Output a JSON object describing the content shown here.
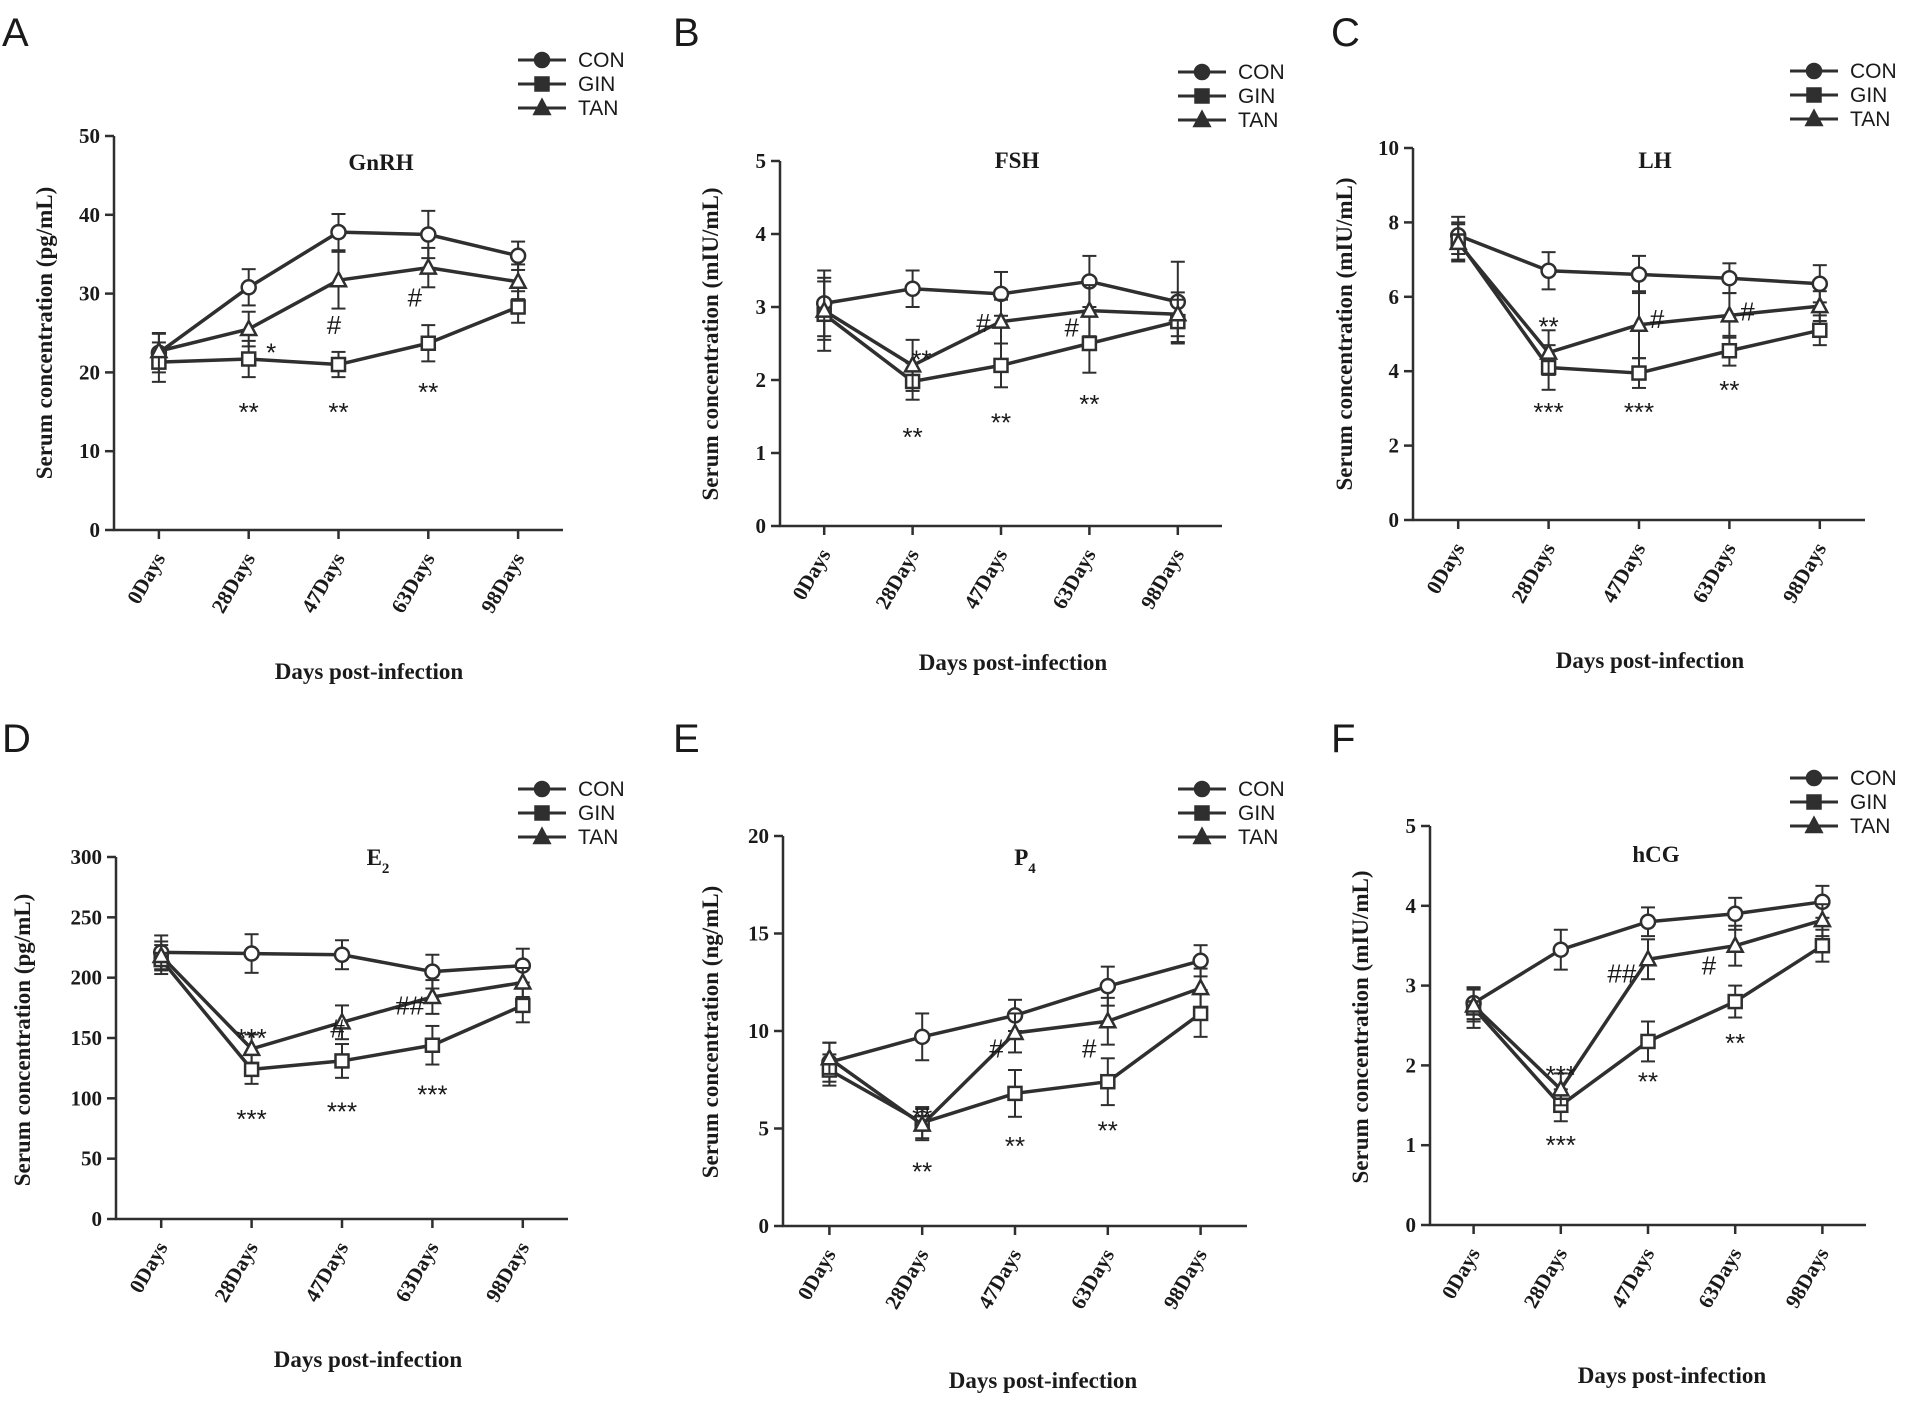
{
  "figure": {
    "colors": {
      "ink": "#2f2f2f",
      "background": "#ffffff"
    }
  },
  "chart_data": [
    {
      "panel": "A",
      "type": "line",
      "title": "GnRH",
      "title_sub": "",
      "xlabel": "Days post-infection",
      "ylabel": "Serum concentration  (pg/mL)",
      "categories": [
        "0Days",
        "28Days",
        "47Days",
        "63Days",
        "98Days"
      ],
      "ylim": [
        0,
        50
      ],
      "yticks": [
        0,
        10,
        20,
        30,
        40,
        50
      ],
      "ytick_labels": [
        "0",
        "10",
        "20",
        "30",
        "40",
        "50"
      ],
      "legend": [
        "CON",
        "GIN",
        "TAN"
      ],
      "series": [
        {
          "name": "CON",
          "marker": "circle",
          "values": [
            22.5,
            30.8,
            37.8,
            37.5,
            34.8
          ],
          "errors": [
            2.5,
            2.3,
            2.3,
            3.0,
            1.8
          ]
        },
        {
          "name": "GIN",
          "marker": "square",
          "values": [
            21.3,
            21.7,
            21.0,
            23.7,
            28.3
          ],
          "errors": [
            2.5,
            2.3,
            1.6,
            2.3,
            2.0
          ]
        },
        {
          "name": "TAN",
          "marker": "triangle",
          "values": [
            22.7,
            25.5,
            31.7,
            33.3,
            31.5
          ],
          "errors": [
            2.2,
            2.2,
            3.6,
            2.5,
            2.2
          ]
        }
      ],
      "annotations": [
        {
          "text": "*",
          "category": "28Days",
          "y": 22.5,
          "dx": 0.25
        },
        {
          "text": "#",
          "category": "47Days",
          "y": 26.0,
          "dx": -0.05
        },
        {
          "text": "#",
          "category": "63Days",
          "y": 29.5,
          "dx": -0.15
        },
        {
          "text": "**",
          "category": "28Days",
          "y": 15.0,
          "dx": 0
        },
        {
          "text": "**",
          "category": "47Days",
          "y": 15.0,
          "dx": 0
        },
        {
          "text": "**",
          "category": "63Days",
          "y": 17.5,
          "dx": 0
        }
      ]
    },
    {
      "panel": "B",
      "type": "line",
      "title": "FSH",
      "title_sub": "",
      "xlabel": "Days post-infection",
      "ylabel": "Serum concentration  (mIU/mL)",
      "categories": [
        "0Days",
        "28Days",
        "47Days",
        "63Days",
        "98Days"
      ],
      "ylim": [
        0,
        5
      ],
      "yticks": [
        0,
        1,
        2,
        3,
        4,
        5
      ],
      "ytick_labels": [
        "0",
        "1",
        "2",
        "3",
        "4",
        "5"
      ],
      "legend": [
        "CON",
        "GIN",
        "TAN"
      ],
      "series": [
        {
          "name": "CON",
          "marker": "circle",
          "values": [
            3.05,
            3.25,
            3.18,
            3.35,
            3.07
          ],
          "errors": [
            0.45,
            0.25,
            0.3,
            0.35,
            0.55
          ]
        },
        {
          "name": "GIN",
          "marker": "square",
          "values": [
            2.9,
            1.98,
            2.2,
            2.5,
            2.8
          ],
          "errors": [
            0.5,
            0.25,
            0.3,
            0.4,
            0.3
          ]
        },
        {
          "name": "TAN",
          "marker": "triangle",
          "values": [
            2.95,
            2.2,
            2.8,
            2.95,
            2.9
          ],
          "errors": [
            0.4,
            0.35,
            0.3,
            0.35,
            0.3
          ]
        }
      ],
      "annotations": [
        {
          "text": "**",
          "category": "28Days",
          "y": 2.28,
          "dx": 0.1
        },
        {
          "text": "#",
          "category": "47Days",
          "y": 2.78,
          "dx": -0.2
        },
        {
          "text": "#",
          "category": "63Days",
          "y": 2.72,
          "dx": -0.2
        },
        {
          "text": "**",
          "category": "28Days",
          "y": 1.22,
          "dx": 0
        },
        {
          "text": "**",
          "category": "47Days",
          "y": 1.42,
          "dx": 0
        },
        {
          "text": "**",
          "category": "63Days",
          "y": 1.67,
          "dx": 0
        }
      ]
    },
    {
      "panel": "C",
      "type": "line",
      "title": "LH",
      "title_sub": "",
      "xlabel": "Days post-infection",
      "ylabel": "Serum concentration  (mIU/mL)",
      "categories": [
        "0Days",
        "28Days",
        "47Days",
        "63Days",
        "98Days"
      ],
      "ylim": [
        0,
        10
      ],
      "yticks": [
        0,
        2,
        4,
        6,
        8,
        10
      ],
      "ytick_labels": [
        "0",
        "2",
        "4",
        "6",
        "8",
        "10"
      ],
      "legend": [
        "CON",
        "GIN",
        "TAN"
      ],
      "series": [
        {
          "name": "CON",
          "marker": "circle",
          "values": [
            7.65,
            6.7,
            6.6,
            6.5,
            6.35
          ],
          "errors": [
            0.5,
            0.5,
            0.5,
            0.4,
            0.5
          ]
        },
        {
          "name": "GIN",
          "marker": "square",
          "values": [
            7.5,
            4.1,
            3.95,
            4.55,
            5.1
          ],
          "errors": [
            0.5,
            0.6,
            0.4,
            0.4,
            0.4
          ]
        },
        {
          "name": "TAN",
          "marker": "triangle",
          "values": [
            7.45,
            4.5,
            5.25,
            5.5,
            5.75
          ],
          "errors": [
            0.5,
            0.6,
            0.9,
            0.6,
            0.4
          ]
        }
      ],
      "annotations": [
        {
          "text": "**",
          "category": "28Days",
          "y": 5.2,
          "dx": 0
        },
        {
          "text": "#",
          "category": "47Days",
          "y": 5.4,
          "dx": 0.2
        },
        {
          "text": "#",
          "category": "63Days",
          "y": 5.6,
          "dx": 0.2
        },
        {
          "text": "***",
          "category": "28Days",
          "y": 2.9,
          "dx": 0
        },
        {
          "text": "***",
          "category": "47Days",
          "y": 2.9,
          "dx": 0
        },
        {
          "text": "**",
          "category": "63Days",
          "y": 3.5,
          "dx": 0
        }
      ]
    },
    {
      "panel": "D",
      "type": "line",
      "title": "E",
      "title_sub": "2",
      "xlabel": "Days post-infection",
      "ylabel": "Serum concentration  (pg/mL)",
      "categories": [
        "0Days",
        "28Days",
        "47Days",
        "63Days",
        "98Days"
      ],
      "ylim": [
        0,
        300
      ],
      "yticks": [
        0,
        50,
        100,
        150,
        200,
        250,
        300
      ],
      "ytick_labels": [
        "0",
        "50",
        "100",
        "150",
        "200",
        "250",
        "300"
      ],
      "legend": [
        "CON",
        "GIN",
        "TAN"
      ],
      "series": [
        {
          "name": "CON",
          "marker": "circle",
          "values": [
            221,
            220,
            219,
            205,
            210
          ],
          "errors": [
            14,
            16,
            12,
            14,
            14
          ]
        },
        {
          "name": "GIN",
          "marker": "square",
          "values": [
            215,
            124,
            131,
            144,
            177
          ],
          "errors": [
            12,
            12,
            14,
            16,
            14
          ]
        },
        {
          "name": "TAN",
          "marker": "triangle",
          "values": [
            218,
            141,
            163,
            184,
            196
          ],
          "errors": [
            12,
            12,
            14,
            14,
            12
          ]
        }
      ],
      "annotations": [
        {
          "text": "***",
          "category": "28Days",
          "y": 150,
          "dx": 0
        },
        {
          "text": "#",
          "category": "47Days",
          "y": 158,
          "dx": -0.05
        },
        {
          "text": "##",
          "category": "63Days",
          "y": 177,
          "dx": -0.25
        },
        {
          "text": "***",
          "category": "28Days",
          "y": 83,
          "dx": 0
        },
        {
          "text": "***",
          "category": "47Days",
          "y": 89,
          "dx": 0
        },
        {
          "text": "***",
          "category": "63Days",
          "y": 103,
          "dx": 0
        }
      ]
    },
    {
      "panel": "E",
      "type": "line",
      "title": "P",
      "title_sub": "4",
      "xlabel": "Days post-infection",
      "ylabel": "Serum concentration  (ng/mL)",
      "categories": [
        "0Days",
        "28Days",
        "47Days",
        "63Days",
        "98Days"
      ],
      "ylim": [
        0,
        20
      ],
      "yticks": [
        0,
        5,
        10,
        15,
        20
      ],
      "ytick_labels": [
        "0",
        "5",
        "10",
        "15",
        "20"
      ],
      "legend": [
        "CON",
        "GIN",
        "TAN"
      ],
      "series": [
        {
          "name": "CON",
          "marker": "circle",
          "values": [
            8.4,
            9.7,
            10.8,
            12.3,
            13.6
          ],
          "errors": [
            1.0,
            1.2,
            0.8,
            1.0,
            0.8
          ]
        },
        {
          "name": "GIN",
          "marker": "square",
          "values": [
            8.0,
            5.3,
            6.8,
            7.4,
            10.9
          ],
          "errors": [
            0.8,
            0.8,
            1.2,
            1.2,
            1.2
          ]
        },
        {
          "name": "TAN",
          "marker": "triangle",
          "values": [
            8.6,
            5.2,
            9.9,
            10.5,
            12.2
          ],
          "errors": [
            0.8,
            0.8,
            1.0,
            1.2,
            1.0
          ]
        }
      ],
      "annotations": [
        {
          "text": "**",
          "category": "28Days",
          "y": 5.6,
          "dx": 0
        },
        {
          "text": "#",
          "category": "47Days",
          "y": 9.1,
          "dx": -0.2
        },
        {
          "text": "#",
          "category": "63Days",
          "y": 9.1,
          "dx": -0.2
        },
        {
          "text": "**",
          "category": "28Days",
          "y": 2.8,
          "dx": 0
        },
        {
          "text": "**",
          "category": "47Days",
          "y": 4.1,
          "dx": 0
        },
        {
          "text": "**",
          "category": "63Days",
          "y": 4.9,
          "dx": 0
        }
      ]
    },
    {
      "panel": "F",
      "type": "line",
      "title": "hCG",
      "title_sub": "",
      "xlabel": "Days post-infection",
      "ylabel": "Serum concentration  (mIU/mL)",
      "categories": [
        "0Days",
        "28Days",
        "47Days",
        "63Days",
        "98Days"
      ],
      "ylim": [
        0,
        5
      ],
      "yticks": [
        0,
        1,
        2,
        3,
        4,
        5
      ],
      "ytick_labels": [
        "0",
        "1",
        "2",
        "3",
        "4",
        "5"
      ],
      "legend": [
        "CON",
        "GIN",
        "TAN"
      ],
      "series": [
        {
          "name": "CON",
          "marker": "circle",
          "values": [
            2.78,
            3.45,
            3.8,
            3.9,
            4.05
          ],
          "errors": [
            0.2,
            0.25,
            0.18,
            0.2,
            0.2
          ]
        },
        {
          "name": "GIN",
          "marker": "square",
          "values": [
            2.72,
            1.5,
            2.3,
            2.8,
            3.5
          ],
          "errors": [
            0.25,
            0.2,
            0.25,
            0.2,
            0.2
          ]
        },
        {
          "name": "TAN",
          "marker": "triangle",
          "values": [
            2.75,
            1.7,
            3.33,
            3.5,
            3.82
          ],
          "errors": [
            0.2,
            0.2,
            0.25,
            0.25,
            0.2
          ]
        }
      ],
      "annotations": [
        {
          "text": "***",
          "category": "28Days",
          "y": 1.88,
          "dx": 0
        },
        {
          "text": "##",
          "category": "47Days",
          "y": 3.15,
          "dx": -0.3
        },
        {
          "text": "#",
          "category": "63Days",
          "y": 3.25,
          "dx": -0.3
        },
        {
          "text": "***",
          "category": "28Days",
          "y": 1.0,
          "dx": 0
        },
        {
          "text": "**",
          "category": "47Days",
          "y": 1.8,
          "dx": 0
        },
        {
          "text": "**",
          "category": "63Days",
          "y": 2.28,
          "dx": 0
        }
      ]
    }
  ]
}
